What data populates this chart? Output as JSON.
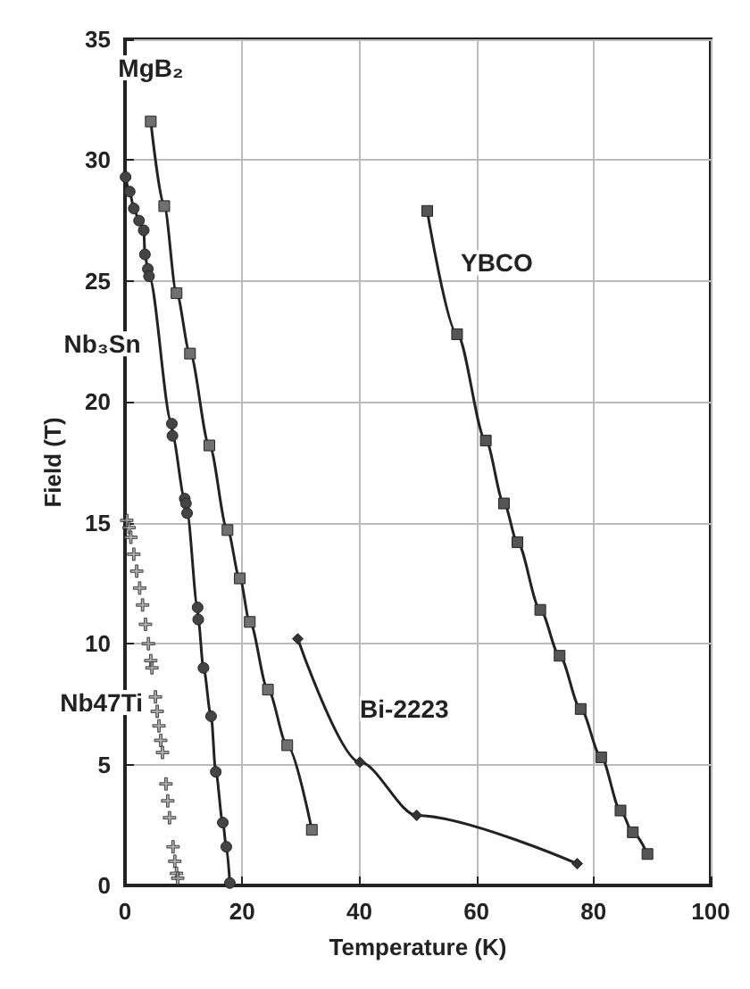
{
  "chart_data": {
    "type": "line",
    "xlabel": "Temperature (K)",
    "ylabel": "Field (T)",
    "xlim": [
      0,
      100
    ],
    "ylim": [
      0,
      35
    ],
    "xticks": [
      0,
      20,
      40,
      60,
      80,
      100
    ],
    "yticks": [
      0,
      5,
      10,
      15,
      20,
      25,
      30,
      35
    ],
    "grid": true,
    "legend": false,
    "series": [
      {
        "name": "MgB₂",
        "marker": "square",
        "color": "#707070",
        "x": [
          4.4,
          6.7,
          8.8,
          11.1,
          14.4,
          17.5,
          19.6,
          21.3,
          24.4,
          27.7,
          31.9
        ],
        "values": [
          31.6,
          28.1,
          24.5,
          22.0,
          18.2,
          14.7,
          12.7,
          10.9,
          8.1,
          5.8,
          2.3
        ]
      },
      {
        "name": "Nb₃Sn",
        "marker": "circle",
        "color": "#444444",
        "x": [
          0.1,
          0.8,
          1.5,
          2.4,
          3.2,
          3.4,
          3.9,
          4.1,
          8.0,
          8.1,
          10.2,
          10.4,
          10.6,
          12.4,
          12.5,
          13.4,
          14.7,
          15.5,
          16.7,
          17.3,
          17.9
        ],
        "values": [
          29.3,
          28.7,
          28.0,
          27.5,
          27.1,
          26.1,
          25.5,
          25.2,
          19.1,
          18.6,
          16.0,
          15.8,
          15.4,
          11.5,
          11.0,
          9.0,
          7.0,
          4.7,
          2.6,
          1.6,
          0.1
        ]
      },
      {
        "name": "Nb47Ti",
        "type": "scatter",
        "marker": "cross",
        "color": "#9a9a9a",
        "x": [
          0.3,
          0.7,
          1.0,
          1.5,
          2.0,
          2.5,
          3.0,
          3.5,
          4.0,
          4.4,
          4.6,
          5.2,
          5.5,
          5.8,
          6.1,
          6.4,
          7.0,
          7.3,
          7.6,
          8.2,
          8.5,
          8.8,
          9.0
        ],
        "values": [
          15.1,
          14.8,
          14.4,
          13.7,
          13.0,
          12.3,
          11.6,
          10.8,
          10.0,
          9.3,
          9.0,
          7.8,
          7.2,
          6.6,
          6.0,
          5.5,
          4.2,
          3.5,
          2.8,
          1.6,
          1.0,
          0.5,
          0.3
        ]
      },
      {
        "name": "Bi-2223",
        "marker": "diamond",
        "color": "#333333",
        "x": [
          29.5,
          40.1,
          49.8,
          77.2
        ],
        "values": [
          10.2,
          5.1,
          2.9,
          0.9
        ]
      },
      {
        "name": "YBCO",
        "marker": "square",
        "color": "#555555",
        "x": [
          51.6,
          56.7,
          61.6,
          64.7,
          67.0,
          70.9,
          74.2,
          77.8,
          81.3,
          84.6,
          86.7,
          89.2
        ],
        "values": [
          27.9,
          22.8,
          18.4,
          15.8,
          14.2,
          11.4,
          9.5,
          7.3,
          5.3,
          3.1,
          2.2,
          1.3
        ]
      }
    ]
  }
}
